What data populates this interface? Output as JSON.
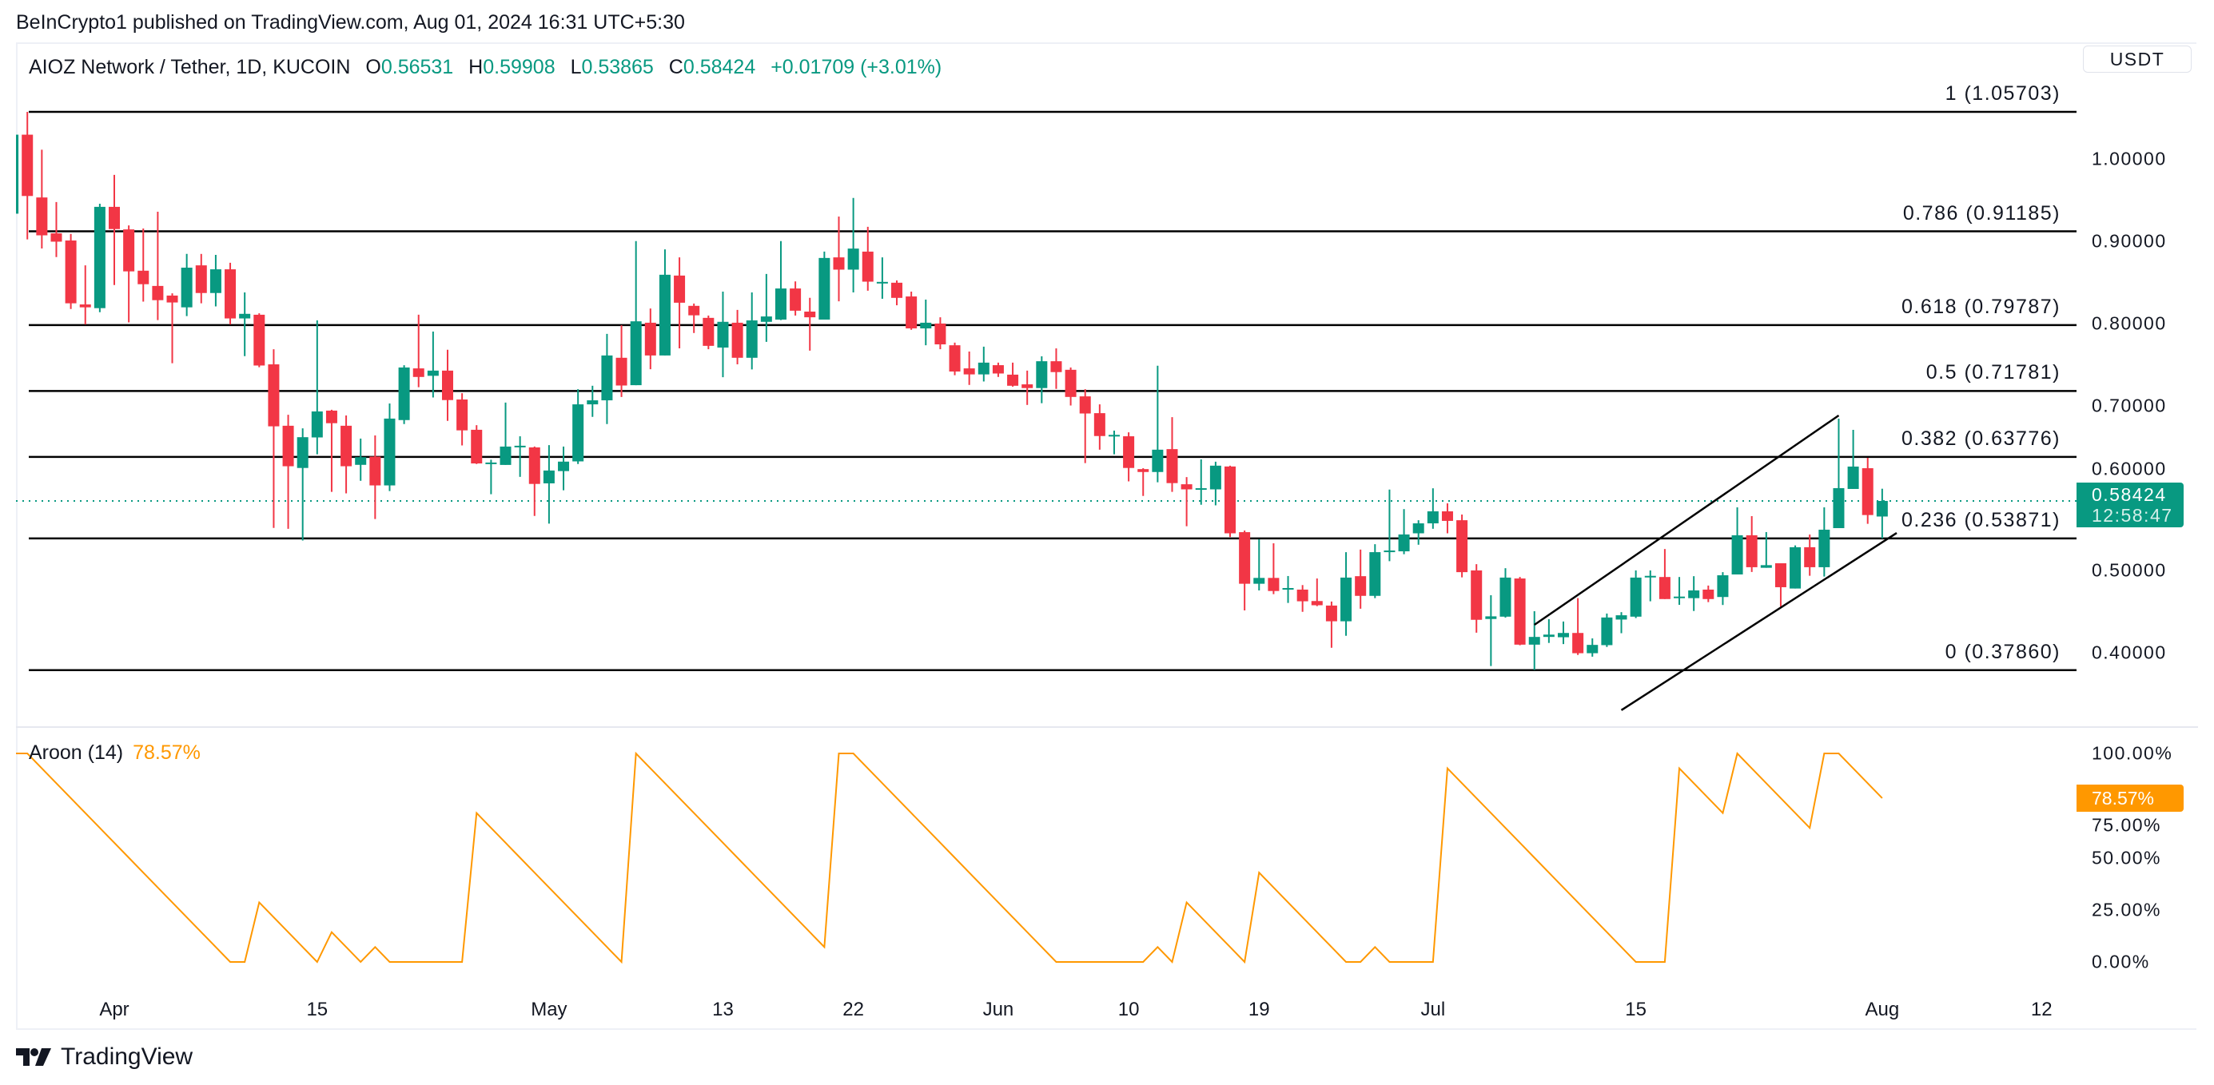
{
  "header": {
    "published": "BeInCrypto1 published on TradingView.com, Aug 01, 2024 16:31 UTC+5:30"
  },
  "legend": {
    "symbol": "AIOZ Network / Tether, 1D, KUCOIN",
    "open_key": "O",
    "open": "0.56531",
    "high_key": "H",
    "high": "0.59908",
    "low_key": "L",
    "low": "0.53865",
    "close_key": "C",
    "close": "0.58424",
    "change": "+0.01709 (+3.01%)"
  },
  "currency_button": "USDT",
  "price_box": {
    "price": "0.58424",
    "countdown": "12:58:47"
  },
  "aroon_legend": {
    "name": "Aroon (14)",
    "value": "78.57%"
  },
  "footer": {
    "brand": "TradingView"
  },
  "colors": {
    "up": "#089981",
    "down": "#F23645",
    "aroon": "#FF9800",
    "fib": "#000000",
    "text": "#131722"
  },
  "chart_data": [
    {
      "type": "candlestick",
      "title": "AIOZ Network / Tether, 1D, KUCOIN",
      "interval": "1D",
      "start_date": "2024-03-25",
      "ohlc_columns": [
        "open",
        "high",
        "low",
        "close"
      ],
      "candles": [
        [
          0.9333,
          1.035,
          0.93,
          1.0293
        ],
        [
          1.0293,
          1.057,
          0.902,
          0.9548
        ],
        [
          0.953,
          1.011,
          0.891,
          0.907
        ],
        [
          0.9094,
          0.9475,
          0.8806,
          0.8993
        ],
        [
          0.9007,
          0.9087,
          0.8175,
          0.8244
        ],
        [
          0.823,
          0.8705,
          0.7987,
          0.8195
        ],
        [
          0.8185,
          0.9454,
          0.8136,
          0.9416
        ],
        [
          0.9416,
          0.9805,
          0.8466,
          0.9146
        ],
        [
          0.9142,
          0.919,
          0.8012,
          0.8632
        ],
        [
          0.864,
          0.9153,
          0.8265,
          0.8476
        ],
        [
          0.8455,
          0.9357,
          0.804,
          0.8282
        ],
        [
          0.8338,
          0.8365,
          0.7516,
          0.8254
        ],
        [
          0.8195,
          0.8844,
          0.8088,
          0.8677
        ],
        [
          0.8705,
          0.8844,
          0.8244,
          0.8369
        ],
        [
          0.8369,
          0.8833,
          0.8206,
          0.8657
        ],
        [
          0.8657,
          0.8736,
          0.7987,
          0.806
        ],
        [
          0.806,
          0.8376,
          0.7602,
          0.8116
        ],
        [
          0.8105,
          0.8123,
          0.7467,
          0.7488
        ],
        [
          0.7502,
          0.7686,
          0.5515,
          0.6749
        ],
        [
          0.6756,
          0.689,
          0.5504,
          0.6264
        ],
        [
          0.6243,
          0.6725,
          0.5362,
          0.6617
        ],
        [
          0.6614,
          0.8036,
          0.6409,
          0.693
        ],
        [
          0.694,
          0.695,
          0.5952,
          0.6787
        ],
        [
          0.6756,
          0.6881,
          0.5934,
          0.6264
        ],
        [
          0.6281,
          0.66,
          0.6087,
          0.6374
        ],
        [
          0.6381,
          0.6638,
          0.5622,
          0.6031
        ],
        [
          0.6031,
          0.7027,
          0.5962,
          0.6843
        ],
        [
          0.6825,
          0.7492,
          0.6777,
          0.7464
        ],
        [
          0.7453,
          0.8105,
          0.7224,
          0.7349
        ],
        [
          0.7363,
          0.79,
          0.7099,
          0.7426
        ],
        [
          0.7426,
          0.7679,
          0.6815,
          0.7068
        ],
        [
          0.7075,
          0.7152,
          0.6517,
          0.67
        ],
        [
          0.6707,
          0.6763,
          0.6291,
          0.6298
        ],
        [
          0.6298,
          0.6343,
          0.5924,
          0.6309
        ],
        [
          0.628,
          0.7037,
          0.628,
          0.6503
        ],
        [
          0.6503,
          0.6628,
          0.6135,
          0.6513
        ],
        [
          0.6493,
          0.6503,
          0.566,
          0.6049
        ],
        [
          0.6056,
          0.652,
          0.5567,
          0.6212
        ],
        [
          0.6205,
          0.6503,
          0.5972,
          0.632
        ],
        [
          0.6323,
          0.72,
          0.6291,
          0.7016
        ],
        [
          0.7016,
          0.7242,
          0.6864,
          0.7065
        ],
        [
          0.7065,
          0.7873,
          0.6777,
          0.761
        ],
        [
          0.7582,
          0.7977,
          0.7106,
          0.7245
        ],
        [
          0.7249,
          0.9,
          0.7249,
          0.8025
        ],
        [
          0.8008,
          0.8181,
          0.7443,
          0.761
        ],
        [
          0.761,
          0.8899,
          0.761,
          0.8591
        ],
        [
          0.8581,
          0.8802,
          0.7696,
          0.8251
        ],
        [
          0.8213,
          0.8241,
          0.7883,
          0.8098
        ],
        [
          0.8067,
          0.8095,
          0.7686,
          0.7727
        ],
        [
          0.7706,
          0.8386,
          0.7346,
          0.8019
        ],
        [
          0.8008,
          0.8164,
          0.7502,
          0.7582
        ],
        [
          0.7582,
          0.8376,
          0.744,
          0.8036
        ],
        [
          0.8019,
          0.8601,
          0.7776,
          0.8084
        ],
        [
          0.8046,
          0.9,
          0.804,
          0.8424
        ],
        [
          0.8424,
          0.851,
          0.8095,
          0.8154
        ],
        [
          0.8143,
          0.831,
          0.7668,
          0.8074
        ],
        [
          0.8046,
          0.8872,
          0.8046,
          0.8795
        ],
        [
          0.8802,
          0.9298,
          0.8268,
          0.8653
        ],
        [
          0.8653,
          0.9524,
          0.8376,
          0.8909
        ],
        [
          0.8872,
          0.9173,
          0.8397,
          0.8507
        ],
        [
          0.8497,
          0.8802,
          0.8299,
          0.8504
        ],
        [
          0.8494,
          0.8522,
          0.822,
          0.831
        ],
        [
          0.8327,
          0.8386,
          0.7922,
          0.7939
        ],
        [
          0.7939,
          0.8289,
          0.7734,
          0.8008
        ],
        [
          0.7998,
          0.8074,
          0.7686,
          0.7745
        ],
        [
          0.7734,
          0.7766,
          0.737,
          0.7415
        ],
        [
          0.7453,
          0.7658,
          0.7252,
          0.738
        ],
        [
          0.738,
          0.7717,
          0.7294,
          0.7523
        ],
        [
          0.7492,
          0.7523,
          0.7349,
          0.7391
        ],
        [
          0.7377,
          0.7523,
          0.7231,
          0.7242
        ],
        [
          0.7259,
          0.7426,
          0.7009,
          0.7214
        ],
        [
          0.7214,
          0.76,
          0.703,
          0.754
        ],
        [
          0.754,
          0.7696,
          0.7204,
          0.7408
        ],
        [
          0.7436,
          0.7464,
          0.7002,
          0.7106
        ],
        [
          0.7113,
          0.72,
          0.6302,
          0.6905
        ],
        [
          0.6909,
          0.7016,
          0.6465,
          0.6631
        ],
        [
          0.6635,
          0.6697,
          0.6409,
          0.6645
        ],
        [
          0.6628,
          0.6676,
          0.608,
          0.6243
        ],
        [
          0.6229,
          0.624,
          0.5903,
          0.6194
        ],
        [
          0.6194,
          0.7485,
          0.6069,
          0.6465
        ],
        [
          0.6472,
          0.686,
          0.5952,
          0.6059
        ],
        [
          0.6045,
          0.6132,
          0.5535,
          0.5983
        ],
        [
          0.5983,
          0.6347,
          0.5796,
          0.5997
        ],
        [
          0.5983,
          0.6319,
          0.5789,
          0.6271
        ],
        [
          0.6261,
          0.6271,
          0.5404,
          0.5449
        ],
        [
          0.5463,
          0.5483,
          0.4512,
          0.4836
        ],
        [
          0.4836,
          0.5376,
          0.4755,
          0.4907
        ],
        [
          0.4907,
          0.5328,
          0.471,
          0.4748
        ],
        [
          0.4771,
          0.493,
          0.4603,
          0.4784
        ],
        [
          0.4765,
          0.482,
          0.4495,
          0.4623
        ],
        [
          0.4626,
          0.49,
          0.4564,
          0.4575
        ],
        [
          0.4571,
          0.462,
          0.4058,
          0.438
        ],
        [
          0.438,
          0.522,
          0.4204,
          0.4911
        ],
        [
          0.4928,
          0.5251,
          0.4533,
          0.4689
        ],
        [
          0.4689,
          0.5317,
          0.4661,
          0.522
        ],
        [
          0.522,
          0.598,
          0.511,
          0.524
        ],
        [
          0.523,
          0.5743,
          0.5195,
          0.5435
        ],
        [
          0.5449,
          0.5608,
          0.531,
          0.557
        ],
        [
          0.557,
          0.5996,
          0.5504,
          0.5716
        ],
        [
          0.5716,
          0.5813,
          0.5449,
          0.56
        ],
        [
          0.5608,
          0.5677,
          0.4914,
          0.4977
        ],
        [
          0.4998,
          0.5074,
          0.4242,
          0.4398
        ],
        [
          0.4408,
          0.4696,
          0.3836,
          0.444
        ],
        [
          0.4436,
          0.5025,
          0.4425,
          0.4911
        ],
        [
          0.49,
          0.4918,
          0.4089,
          0.4096
        ],
        [
          0.4096,
          0.4502,
          0.3787,
          0.419
        ],
        [
          0.419,
          0.4405,
          0.4117,
          0.4218
        ],
        [
          0.4186,
          0.4377,
          0.4103,
          0.4238
        ],
        [
          0.4238,
          0.4661,
          0.3971,
          0.3992
        ],
        [
          0.3992,
          0.4172,
          0.395,
          0.4093
        ],
        [
          0.409,
          0.4474,
          0.4068,
          0.4426
        ],
        [
          0.4401,
          0.4491,
          0.4235,
          0.4453
        ],
        [
          0.4436,
          0.4998,
          0.4419,
          0.4911
        ],
        [
          0.4914,
          0.4998,
          0.4623,
          0.4932
        ],
        [
          0.4918,
          0.5258,
          0.465,
          0.465
        ],
        [
          0.4668,
          0.4918,
          0.458,
          0.468
        ],
        [
          0.4661,
          0.4928,
          0.4505,
          0.4755
        ],
        [
          0.4765,
          0.4814,
          0.4613,
          0.465
        ],
        [
          0.4675,
          0.4977,
          0.4578,
          0.4939
        ],
        [
          0.4949,
          0.5765,
          0.4949,
          0.5425
        ],
        [
          0.5425,
          0.5658,
          0.4979,
          0.5037
        ],
        [
          0.503,
          0.5464,
          0.503,
          0.5062
        ],
        [
          0.5085,
          0.5085,
          0.4558,
          0.4794
        ],
        [
          0.4778,
          0.5302,
          0.4778,
          0.528
        ],
        [
          0.528,
          0.5434,
          0.4933,
          0.5037
        ],
        [
          0.5037,
          0.5765,
          0.4923,
          0.5493
        ],
        [
          0.5512,
          0.6842,
          0.5512,
          0.5998
        ],
        [
          0.5988,
          0.6706,
          0.5988,
          0.626
        ],
        [
          0.624,
          0.6367,
          0.5564,
          0.5671
        ],
        [
          0.56531,
          0.59908,
          0.53865,
          0.58424
        ]
      ],
      "last_price": 0.58424,
      "y_axis": {
        "ylim": [
          0.33,
          1.09
        ],
        "ticks": [
          {
            "value": 1.0,
            "label": "1.00000"
          },
          {
            "value": 0.9,
            "label": "0.90000"
          },
          {
            "value": 0.8,
            "label": "0.80000"
          },
          {
            "value": 0.7,
            "label": "0.70000"
          },
          {
            "value": 0.6,
            "label": "0.60000"
          },
          {
            "value": 0.5,
            "label": "0.50000"
          },
          {
            "value": 0.4,
            "label": "0.40000"
          }
        ]
      },
      "x_axis": {
        "ticks": [
          {
            "label": "Apr",
            "date": "2024-04-01"
          },
          {
            "label": "15",
            "date": "2024-04-15"
          },
          {
            "label": "May",
            "date": "2024-05-01"
          },
          {
            "label": "13",
            "date": "2024-05-13"
          },
          {
            "label": "22",
            "date": "2024-05-22"
          },
          {
            "label": "Jun",
            "date": "2024-06-01"
          },
          {
            "label": "10",
            "date": "2024-06-10"
          },
          {
            "label": "19",
            "date": "2024-06-19"
          },
          {
            "label": "Jul",
            "date": "2024-07-01"
          },
          {
            "label": "15",
            "date": "2024-07-15"
          },
          {
            "label": "Aug",
            "date": "2024-08-01"
          },
          {
            "label": "12",
            "date": "2024-08-12"
          }
        ]
      },
      "fib_levels": [
        {
          "ratio": 1,
          "price": 1.05703,
          "label": "1 (1.05703)"
        },
        {
          "ratio": 0.786,
          "price": 0.91185,
          "label": "0.786 (0.91185)"
        },
        {
          "ratio": 0.618,
          "price": 0.79787,
          "label": "0.618 (0.79787)"
        },
        {
          "ratio": 0.5,
          "price": 0.71781,
          "label": "0.5 (0.71781)"
        },
        {
          "ratio": 0.382,
          "price": 0.63776,
          "label": "0.382 (0.63776)"
        },
        {
          "ratio": 0.236,
          "price": 0.53871,
          "label": "0.236 (0.53871)"
        },
        {
          "ratio": 0,
          "price": 0.3786,
          "label": "0 (0.37860)"
        }
      ],
      "trend_lines": [
        {
          "name": "channel-upper",
          "points": [
            {
              "date": "2024-07-08",
              "price": 0.4337
            },
            {
              "date": "2024-07-29",
              "price": 0.6881
            }
          ]
        },
        {
          "name": "channel-lower",
          "points": [
            {
              "date": "2024-07-14",
              "price": 0.33
            },
            {
              "date": "2024-08-02",
              "price": 0.5453
            }
          ]
        }
      ]
    },
    {
      "type": "line",
      "title": "Aroon (14)",
      "start_date": "2024-03-25",
      "series": [
        {
          "name": "Aroon Up",
          "values": [
            100,
            100,
            92.86,
            85.71,
            78.57,
            71.43,
            64.29,
            57.14,
            50,
            42.86,
            35.71,
            28.57,
            21.43,
            14.29,
            7.14,
            0,
            0,
            28.57,
            21.43,
            14.29,
            7.14,
            0,
            14.29,
            7.14,
            0,
            7.14,
            0,
            0,
            0,
            0,
            0,
            0,
            71.43,
            64.29,
            57.14,
            50,
            42.86,
            35.71,
            28.57,
            21.43,
            14.29,
            7.14,
            0,
            100,
            92.86,
            85.71,
            78.57,
            71.43,
            64.29,
            57.14,
            50,
            42.86,
            35.71,
            28.57,
            21.43,
            14.29,
            7.14,
            100,
            100,
            92.86,
            85.71,
            78.57,
            71.43,
            64.29,
            57.14,
            50,
            42.86,
            35.71,
            28.57,
            21.43,
            14.29,
            7.14,
            0,
            0,
            0,
            0,
            0,
            0,
            0,
            7.14,
            0,
            28.57,
            21.43,
            14.29,
            7.14,
            0,
            42.86,
            35.71,
            28.57,
            21.43,
            14.29,
            7.14,
            0,
            0,
            7.14,
            0,
            0,
            0,
            0,
            92.86,
            85.71,
            78.57,
            71.43,
            64.29,
            57.14,
            50,
            42.86,
            35.71,
            28.57,
            21.43,
            14.29,
            7.14,
            0,
            0,
            0,
            92.86,
            85.71,
            78.57,
            71.43,
            100,
            92.86,
            85.71,
            78.57,
            71.43,
            64.29,
            100,
            100,
            92.86,
            85.71,
            78.57
          ]
        }
      ],
      "ylim": [
        0,
        100
      ],
      "y_ticks": [
        {
          "value": 100,
          "label": "100.00%"
        },
        {
          "value": 75,
          "label": "75.00%"
        },
        {
          "value": 50,
          "label": "50.00%"
        },
        {
          "value": 25,
          "label": "25.00%"
        },
        {
          "value": 0,
          "label": "0.00%"
        }
      ],
      "last_value": 78.57
    }
  ]
}
